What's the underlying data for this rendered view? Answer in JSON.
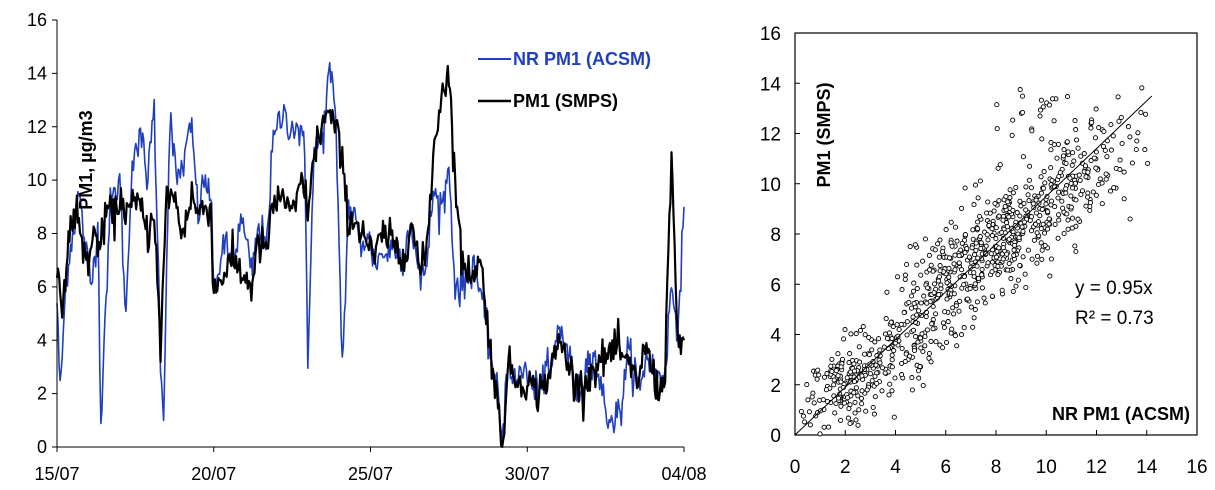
{
  "chart_data": [
    {
      "type": "line",
      "x_start": "15/07",
      "x_end": "04/08",
      "xticks": [
        "15/07",
        "20/07",
        "25/07",
        "30/07",
        "04/08"
      ],
      "yticks": [
        "0",
        "2",
        "4",
        "6",
        "8",
        "10",
        "12",
        "14",
        "16"
      ],
      "ylim": [
        0,
        16
      ],
      "ylabel": "PM1, µg/m3",
      "legend_position": "top-right",
      "series": [
        {
          "name": "NR PM1 (ACSM)",
          "color": "#1f3fbf",
          "anchors": [
            [
              15.0,
              5.5
            ],
            [
              15.1,
              2.0
            ],
            [
              15.3,
              6.5
            ],
            [
              15.5,
              8.0
            ],
            [
              15.7,
              9.5
            ],
            [
              15.9,
              7.5
            ],
            [
              16.1,
              6.0
            ],
            [
              16.3,
              8.5
            ],
            [
              16.4,
              1.0
            ],
            [
              16.5,
              4.0
            ],
            [
              16.7,
              9.0
            ],
            [
              17.0,
              10.0
            ],
            [
              17.2,
              4.8
            ],
            [
              17.4,
              11.0
            ],
            [
              17.7,
              11.5
            ],
            [
              17.9,
              10.0
            ],
            [
              18.1,
              12.8
            ],
            [
              18.3,
              3.5
            ],
            [
              18.4,
              1.2
            ],
            [
              18.6,
              12.5
            ],
            [
              18.8,
              10.0
            ],
            [
              19.0,
              10.5
            ],
            [
              19.3,
              12.0
            ],
            [
              19.5,
              8.7
            ],
            [
              19.7,
              10.0
            ],
            [
              19.9,
              9.5
            ],
            [
              20.0,
              5.8
            ],
            [
              20.3,
              7.5
            ],
            [
              20.6,
              7.0
            ],
            [
              20.9,
              8.5
            ],
            [
              21.2,
              6.5
            ],
            [
              21.4,
              8.0
            ],
            [
              21.7,
              8.0
            ],
            [
              21.9,
              11.5
            ],
            [
              22.2,
              12.5
            ],
            [
              22.5,
              12.0
            ],
            [
              22.7,
              12.0
            ],
            [
              22.9,
              11.0
            ],
            [
              23.0,
              3.5
            ],
            [
              23.2,
              11.0
            ],
            [
              23.5,
              11.8
            ],
            [
              23.7,
              14.3
            ],
            [
              23.9,
              12.0
            ],
            [
              24.1,
              3.0
            ],
            [
              24.3,
              9.0
            ],
            [
              24.5,
              8.5
            ],
            [
              24.7,
              7.5
            ],
            [
              24.9,
              8.0
            ],
            [
              25.1,
              7.0
            ],
            [
              25.4,
              7.2
            ],
            [
              25.8,
              7.5
            ],
            [
              26.0,
              7.0
            ],
            [
              26.3,
              8.5
            ],
            [
              26.6,
              6.0
            ],
            [
              26.8,
              7.0
            ],
            [
              27.0,
              9.5
            ],
            [
              27.3,
              9.0
            ],
            [
              27.5,
              10.5
            ],
            [
              27.7,
              6.0
            ],
            [
              28.0,
              6.0
            ],
            [
              28.3,
              7.0
            ],
            [
              28.6,
              5.0
            ],
            [
              28.9,
              3.0
            ],
            [
              29.1,
              1.5
            ],
            [
              29.2,
              0.4
            ],
            [
              29.4,
              3.5
            ],
            [
              29.6,
              2.3
            ],
            [
              29.9,
              3.0
            ],
            [
              30.2,
              2.0
            ],
            [
              30.5,
              2.5
            ],
            [
              30.8,
              3.0
            ],
            [
              31.0,
              4.5
            ],
            [
              31.2,
              4.0
            ],
            [
              31.4,
              3.0
            ],
            [
              31.6,
              2.0
            ],
            [
              31.8,
              2.5
            ],
            [
              32.0,
              3.7
            ],
            [
              32.2,
              3.2
            ],
            [
              32.5,
              1.3
            ],
            [
              32.8,
              1.0
            ],
            [
              33.0,
              1.5
            ],
            [
              33.2,
              3.5
            ],
            [
              33.4,
              3.0
            ],
            [
              33.6,
              2.0
            ],
            [
              33.8,
              3.5
            ],
            [
              34.0,
              3.0
            ],
            [
              34.2,
              2.5
            ],
            [
              34.4,
              3.0
            ],
            [
              34.6,
              6.0
            ],
            [
              34.8,
              4.5
            ],
            [
              35.0,
              9.0
            ]
          ]
        },
        {
          "name": "PM1 (SMPS)",
          "color": "#000000",
          "anchors": [
            [
              15.0,
              6.0
            ],
            [
              15.2,
              5.5
            ],
            [
              15.4,
              8.0
            ],
            [
              15.6,
              9.0
            ],
            [
              15.8,
              7.5
            ],
            [
              16.0,
              7.0
            ],
            [
              16.2,
              8.0
            ],
            [
              16.4,
              7.5
            ],
            [
              16.6,
              9.0
            ],
            [
              16.8,
              8.5
            ],
            [
              17.0,
              9.3
            ],
            [
              17.3,
              8.8
            ],
            [
              17.6,
              9.2
            ],
            [
              17.9,
              8.0
            ],
            [
              18.1,
              9.0
            ],
            [
              18.3,
              3.5
            ],
            [
              18.5,
              9.5
            ],
            [
              18.7,
              9.5
            ],
            [
              19.0,
              8.0
            ],
            [
              19.3,
              9.5
            ],
            [
              19.5,
              8.7
            ],
            [
              19.7,
              9.0
            ],
            [
              19.9,
              9.0
            ],
            [
              20.0,
              5.8
            ],
            [
              20.3,
              6.5
            ],
            [
              20.6,
              7.0
            ],
            [
              20.9,
              6.5
            ],
            [
              21.2,
              6.0
            ],
            [
              21.4,
              7.5
            ],
            [
              21.7,
              7.5
            ],
            [
              21.9,
              9.0
            ],
            [
              22.2,
              9.5
            ],
            [
              22.5,
              8.5
            ],
            [
              22.8,
              10.0
            ],
            [
              23.0,
              9.0
            ],
            [
              23.3,
              11.5
            ],
            [
              23.6,
              12.5
            ],
            [
              23.9,
              12.0
            ],
            [
              24.1,
              10.5
            ],
            [
              24.3,
              8.5
            ],
            [
              24.5,
              8.5
            ],
            [
              24.8,
              8.0
            ],
            [
              25.1,
              7.0
            ],
            [
              25.4,
              8.0
            ],
            [
              25.8,
              7.5
            ],
            [
              26.0,
              7.0
            ],
            [
              26.3,
              8.5
            ],
            [
              26.6,
              6.5
            ],
            [
              26.8,
              7.5
            ],
            [
              27.0,
              11.0
            ],
            [
              27.3,
              13.5
            ],
            [
              27.5,
              14.0
            ],
            [
              27.7,
              10.0
            ],
            [
              27.9,
              7.0
            ],
            [
              28.2,
              6.5
            ],
            [
              28.5,
              7.0
            ],
            [
              28.8,
              4.0
            ],
            [
              29.0,
              2.0
            ],
            [
              29.2,
              0.2
            ],
            [
              29.4,
              3.0
            ],
            [
              29.7,
              2.5
            ],
            [
              30.0,
              2.5
            ],
            [
              30.3,
              2.0
            ],
            [
              30.6,
              2.5
            ],
            [
              30.8,
              3.0
            ],
            [
              31.0,
              4.0
            ],
            [
              31.3,
              3.2
            ],
            [
              31.6,
              2.2
            ],
            [
              31.9,
              2.5
            ],
            [
              32.1,
              3.0
            ],
            [
              32.4,
              3.2
            ],
            [
              32.6,
              3.5
            ],
            [
              32.9,
              3.7
            ],
            [
              33.2,
              3.0
            ],
            [
              33.5,
              2.5
            ],
            [
              33.8,
              3.8
            ],
            [
              34.0,
              2.8
            ],
            [
              34.2,
              2.0
            ],
            [
              34.4,
              3.0
            ],
            [
              34.6,
              11.3
            ],
            [
              34.8,
              3.5
            ],
            [
              35.0,
              4.0
            ]
          ]
        }
      ]
    },
    {
      "type": "scatter",
      "xlim": [
        0,
        16
      ],
      "ylim": [
        0,
        16
      ],
      "xticks": [
        "0",
        "2",
        "4",
        "6",
        "8",
        "10",
        "12",
        "14",
        "16"
      ],
      "yticks": [
        "0",
        "2",
        "4",
        "6",
        "8",
        "10",
        "12",
        "14",
        "16"
      ],
      "xlabel": "NR PM1 (ACSM)",
      "ylabel": "PM1 (SMPS)",
      "marker_color": "#000000",
      "fit": {
        "slope": 0.95,
        "intercept": 0,
        "x_range": [
          0,
          14.2
        ]
      },
      "annotation_eq": "y = 0.95x",
      "annotation_r2": "R² = 0.73",
      "clusters": [
        {
          "cx": 2.3,
          "cy": 2.2,
          "sx": 0.9,
          "sy": 0.9,
          "n": 180
        },
        {
          "cx": 4.5,
          "cy": 4.0,
          "sx": 1.2,
          "sy": 1.2,
          "n": 120
        },
        {
          "cx": 6.5,
          "cy": 6.3,
          "sx": 1.2,
          "sy": 1.2,
          "n": 200
        },
        {
          "cx": 8.7,
          "cy": 8.2,
          "sx": 1.3,
          "sy": 1.3,
          "n": 250
        },
        {
          "cx": 11.0,
          "cy": 10.0,
          "sx": 1.4,
          "sy": 1.5,
          "n": 160
        },
        {
          "cx": 9.5,
          "cy": 13.0,
          "sx": 0.6,
          "sy": 0.6,
          "n": 20
        }
      ]
    }
  ]
}
